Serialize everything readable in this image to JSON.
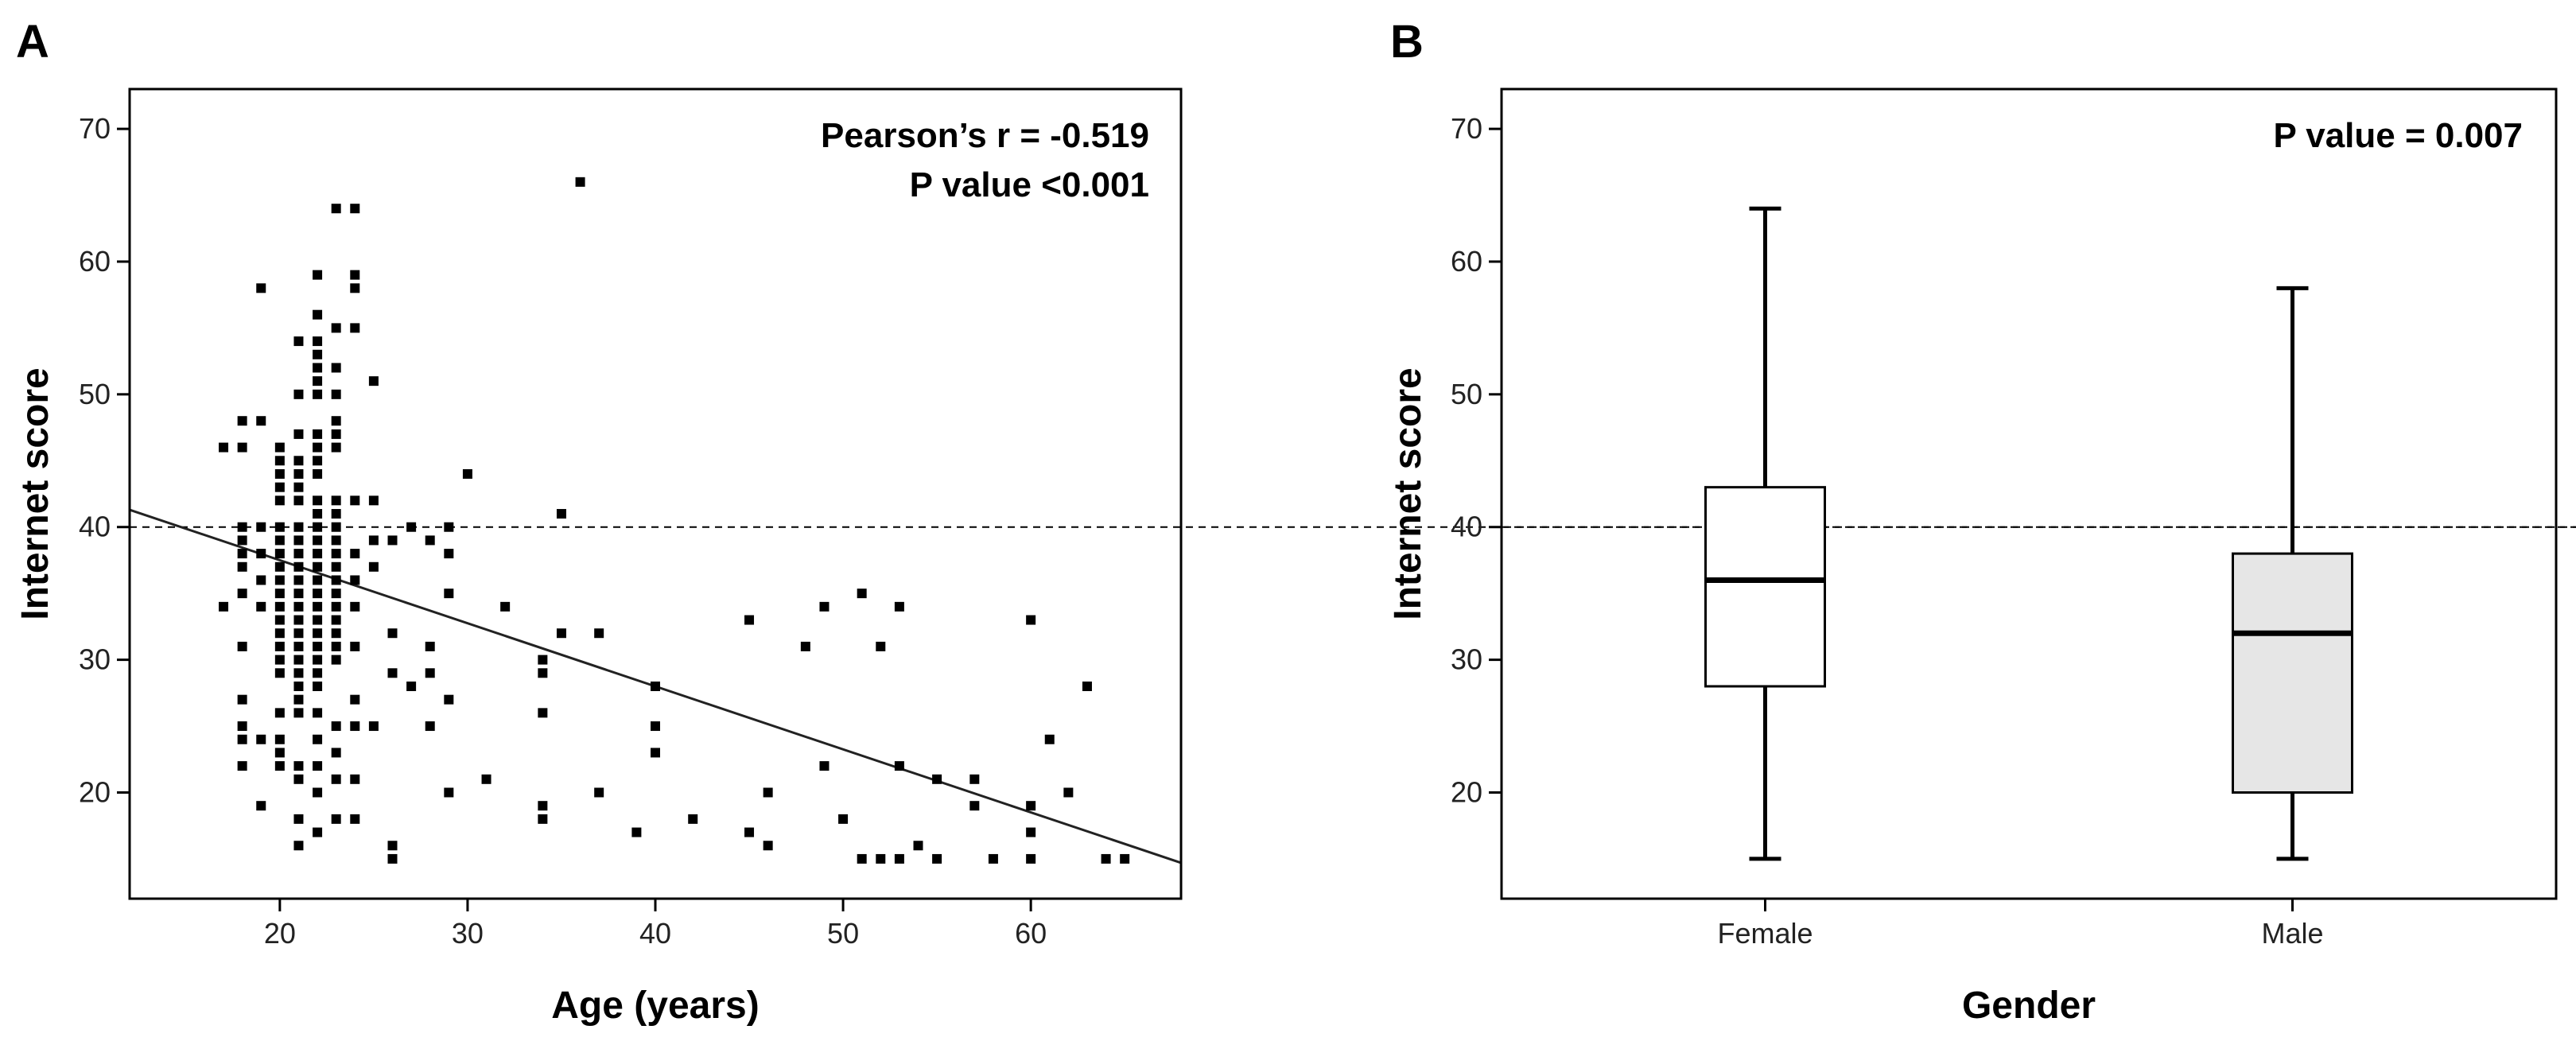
{
  "chart_data": [
    {
      "type": "scatter",
      "panel_label": "A",
      "xlabel": "Age (years)",
      "ylabel": "Internet score",
      "xlim": [
        12,
        68
      ],
      "ylim": [
        12,
        73
      ],
      "xticks": [
        20,
        30,
        40,
        50,
        60
      ],
      "yticks": [
        20,
        30,
        40,
        50,
        60,
        70
      ],
      "annotations": [
        "Pearson’s r = -0.519",
        "P value <0.001"
      ],
      "reference_line_y": 40,
      "regression": {
        "x": [
          12,
          68
        ],
        "y": [
          41.3,
          14.7
        ]
      },
      "points": [
        [
          17,
          46
        ],
        [
          17,
          34
        ],
        [
          18,
          48
        ],
        [
          18,
          46
        ],
        [
          18,
          40
        ],
        [
          18,
          39
        ],
        [
          18,
          38
        ],
        [
          18,
          37
        ],
        [
          18,
          35
        ],
        [
          18,
          31
        ],
        [
          18,
          27
        ],
        [
          18,
          25
        ],
        [
          18,
          24
        ],
        [
          18,
          22
        ],
        [
          19,
          58
        ],
        [
          19,
          48
        ],
        [
          19,
          40
        ],
        [
          19,
          38
        ],
        [
          19,
          36
        ],
        [
          19,
          34
        ],
        [
          19,
          24
        ],
        [
          19,
          19
        ],
        [
          20,
          46
        ],
        [
          20,
          45
        ],
        [
          20,
          44
        ],
        [
          20,
          43
        ],
        [
          20,
          42
        ],
        [
          20,
          40
        ],
        [
          20,
          39
        ],
        [
          20,
          38
        ],
        [
          20,
          37
        ],
        [
          20,
          36
        ],
        [
          20,
          35
        ],
        [
          20,
          34
        ],
        [
          20,
          33
        ],
        [
          20,
          32
        ],
        [
          20,
          31
        ],
        [
          20,
          30
        ],
        [
          20,
          29
        ],
        [
          20,
          26
        ],
        [
          20,
          24
        ],
        [
          20,
          23
        ],
        [
          20,
          22
        ],
        [
          21,
          54
        ],
        [
          21,
          50
        ],
        [
          21,
          47
        ],
        [
          21,
          45
        ],
        [
          21,
          44
        ],
        [
          21,
          43
        ],
        [
          21,
          42
        ],
        [
          21,
          40
        ],
        [
          21,
          39
        ],
        [
          21,
          38
        ],
        [
          21,
          37
        ],
        [
          21,
          36
        ],
        [
          21,
          35
        ],
        [
          21,
          34
        ],
        [
          21,
          33
        ],
        [
          21,
          32
        ],
        [
          21,
          31
        ],
        [
          21,
          30
        ],
        [
          21,
          29
        ],
        [
          21,
          28
        ],
        [
          21,
          27
        ],
        [
          21,
          26
        ],
        [
          21,
          22
        ],
        [
          21,
          21
        ],
        [
          21,
          18
        ],
        [
          21,
          16
        ],
        [
          22,
          59
        ],
        [
          22,
          56
        ],
        [
          22,
          54
        ],
        [
          22,
          53
        ],
        [
          22,
          52
        ],
        [
          22,
          51
        ],
        [
          22,
          50
        ],
        [
          22,
          47
        ],
        [
          22,
          46
        ],
        [
          22,
          45
        ],
        [
          22,
          44
        ],
        [
          22,
          42
        ],
        [
          22,
          41
        ],
        [
          22,
          40
        ],
        [
          22,
          39
        ],
        [
          22,
          38
        ],
        [
          22,
          37
        ],
        [
          22,
          36
        ],
        [
          22,
          35
        ],
        [
          22,
          34
        ],
        [
          22,
          33
        ],
        [
          22,
          32
        ],
        [
          22,
          31
        ],
        [
          22,
          30
        ],
        [
          22,
          29
        ],
        [
          22,
          28
        ],
        [
          22,
          26
        ],
        [
          22,
          24
        ],
        [
          22,
          22
        ],
        [
          22,
          20
        ],
        [
          22,
          17
        ],
        [
          23,
          64
        ],
        [
          23,
          55
        ],
        [
          23,
          52
        ],
        [
          23,
          50
        ],
        [
          23,
          48
        ],
        [
          23,
          47
        ],
        [
          23,
          46
        ],
        [
          23,
          42
        ],
        [
          23,
          41
        ],
        [
          23,
          40
        ],
        [
          23,
          39
        ],
        [
          23,
          38
        ],
        [
          23,
          37
        ],
        [
          23,
          36
        ],
        [
          23,
          35
        ],
        [
          23,
          34
        ],
        [
          23,
          33
        ],
        [
          23,
          32
        ],
        [
          23,
          31
        ],
        [
          23,
          30
        ],
        [
          23,
          25
        ],
        [
          23,
          23
        ],
        [
          23,
          21
        ],
        [
          23,
          18
        ],
        [
          24,
          64
        ],
        [
          24,
          59
        ],
        [
          24,
          58
        ],
        [
          24,
          55
        ],
        [
          24,
          42
        ],
        [
          24,
          38
        ],
        [
          24,
          36
        ],
        [
          24,
          34
        ],
        [
          24,
          31
        ],
        [
          24,
          27
        ],
        [
          24,
          25
        ],
        [
          24,
          21
        ],
        [
          24,
          18
        ],
        [
          25,
          51
        ],
        [
          25,
          42
        ],
        [
          25,
          39
        ],
        [
          25,
          37
        ],
        [
          25,
          25
        ],
        [
          26,
          39
        ],
        [
          26,
          32
        ],
        [
          26,
          29
        ],
        [
          26,
          16
        ],
        [
          26,
          15
        ],
        [
          27,
          40
        ],
        [
          27,
          28
        ],
        [
          28,
          39
        ],
        [
          28,
          31
        ],
        [
          28,
          29
        ],
        [
          28,
          25
        ],
        [
          29,
          40
        ],
        [
          29,
          38
        ],
        [
          29,
          35
        ],
        [
          29,
          27
        ],
        [
          29,
          20
        ],
        [
          30,
          44
        ],
        [
          31,
          21
        ],
        [
          32,
          34
        ],
        [
          34,
          30
        ],
        [
          34,
          29
        ],
        [
          34,
          26
        ],
        [
          34,
          19
        ],
        [
          34,
          18
        ],
        [
          35,
          41
        ],
        [
          35,
          32
        ],
        [
          36,
          66
        ],
        [
          37,
          32
        ],
        [
          37,
          20
        ],
        [
          39,
          17
        ],
        [
          40,
          28
        ],
        [
          40,
          25
        ],
        [
          40,
          23
        ],
        [
          42,
          18
        ],
        [
          45,
          33
        ],
        [
          45,
          17
        ],
        [
          46,
          20
        ],
        [
          46,
          16
        ],
        [
          48,
          31
        ],
        [
          49,
          34
        ],
        [
          49,
          22
        ],
        [
          50,
          18
        ],
        [
          51,
          35
        ],
        [
          51,
          15
        ],
        [
          52,
          31
        ],
        [
          52,
          15
        ],
        [
          53,
          34
        ],
        [
          53,
          22
        ],
        [
          53,
          15
        ],
        [
          54,
          16
        ],
        [
          55,
          21
        ],
        [
          55,
          15
        ],
        [
          57,
          21
        ],
        [
          57,
          19
        ],
        [
          58,
          15
        ],
        [
          60,
          33
        ],
        [
          60,
          19
        ],
        [
          60,
          17
        ],
        [
          60,
          15
        ],
        [
          61,
          24
        ],
        [
          62,
          20
        ],
        [
          63,
          28
        ],
        [
          64,
          15
        ],
        [
          65,
          15
        ]
      ]
    },
    {
      "type": "box",
      "panel_label": "B",
      "xlabel": "Gender",
      "ylabel": "Internet score",
      "ylim": [
        12,
        73
      ],
      "yticks": [
        20,
        30,
        40,
        50,
        60,
        70
      ],
      "annotations": [
        "P value = 0.007"
      ],
      "reference_line_y": 40,
      "categories": [
        "Female",
        "Male"
      ],
      "boxes": [
        {
          "name": "Female",
          "min": 15,
          "q1": 28,
          "median": 36,
          "q3": 43,
          "max": 64,
          "fill": "#ffffff"
        },
        {
          "name": "Male",
          "min": 15,
          "q1": 20,
          "median": 32,
          "q3": 38,
          "max": 58,
          "fill": "#e6e6e6"
        }
      ]
    }
  ]
}
